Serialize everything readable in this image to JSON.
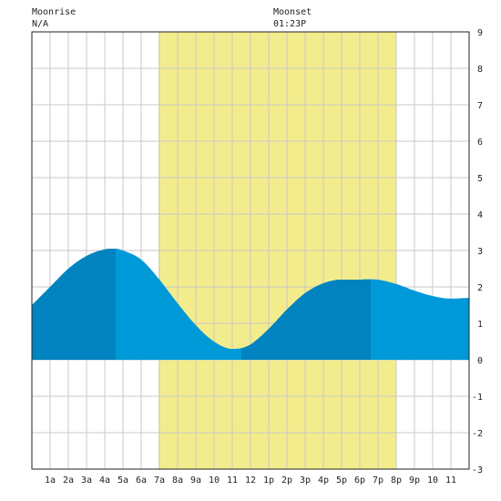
{
  "header": {
    "moonrise": {
      "title": "Moonrise",
      "time": "N/A"
    },
    "moonset": {
      "title": "Moonset",
      "time": "01:23P"
    }
  },
  "chart_data": {
    "type": "area",
    "x_unit": "hour of day",
    "xlim": [
      -1,
      23
    ],
    "ylim": [
      -3,
      9
    ],
    "grid": true,
    "x_ticks": [
      {
        "x": 0,
        "label": "1a"
      },
      {
        "x": 1,
        "label": "2a"
      },
      {
        "x": 2,
        "label": "3a"
      },
      {
        "x": 3,
        "label": "4a"
      },
      {
        "x": 4,
        "label": "5a"
      },
      {
        "x": 5,
        "label": "6a"
      },
      {
        "x": 6,
        "label": "7a"
      },
      {
        "x": 7,
        "label": "8a"
      },
      {
        "x": 8,
        "label": "9a"
      },
      {
        "x": 9,
        "label": "10"
      },
      {
        "x": 10,
        "label": "11"
      },
      {
        "x": 11,
        "label": "12"
      },
      {
        "x": 12,
        "label": "1p"
      },
      {
        "x": 13,
        "label": "2p"
      },
      {
        "x": 14,
        "label": "3p"
      },
      {
        "x": 15,
        "label": "4p"
      },
      {
        "x": 16,
        "label": "5p"
      },
      {
        "x": 17,
        "label": "6p"
      },
      {
        "x": 18,
        "label": "7p"
      },
      {
        "x": 19,
        "label": "8p"
      },
      {
        "x": 20,
        "label": "9p"
      },
      {
        "x": 21,
        "label": "10"
      },
      {
        "x": 22,
        "label": "11"
      }
    ],
    "y_ticks": [
      -3,
      -2,
      -1,
      0,
      1,
      2,
      3,
      4,
      5,
      6,
      7,
      8,
      9
    ],
    "daylight": {
      "start": 5.95,
      "end": 19.0
    },
    "series": [
      {
        "x": [
          -1,
          0,
          1,
          2,
          3,
          3.6,
          4,
          5,
          6,
          7,
          8,
          9,
          10,
          10.5,
          11,
          12,
          13,
          14,
          15,
          16,
          17,
          17.6,
          18,
          19,
          20,
          21,
          22,
          23
        ],
        "y": [
          1.5,
          2.0,
          2.5,
          2.85,
          3.03,
          3.05,
          3.0,
          2.75,
          2.2,
          1.55,
          0.95,
          0.5,
          0.3,
          0.32,
          0.42,
          0.85,
          1.38,
          1.83,
          2.1,
          2.2,
          2.2,
          2.21,
          2.2,
          2.08,
          1.9,
          1.75,
          1.68,
          1.7
        ]
      }
    ],
    "extremes": [
      {
        "kind": "high",
        "x": 3.6,
        "y": 3.05
      },
      {
        "kind": "low",
        "x": 10.5,
        "y": 0.32
      },
      {
        "kind": "high",
        "x": 17.6,
        "y": 2.21
      }
    ],
    "colors": {
      "daylight": "#f3ec8c",
      "tide": "#0099d8",
      "tide_dark": "#0083bf",
      "grid": "#c8c8c8",
      "border": "#222222"
    }
  }
}
